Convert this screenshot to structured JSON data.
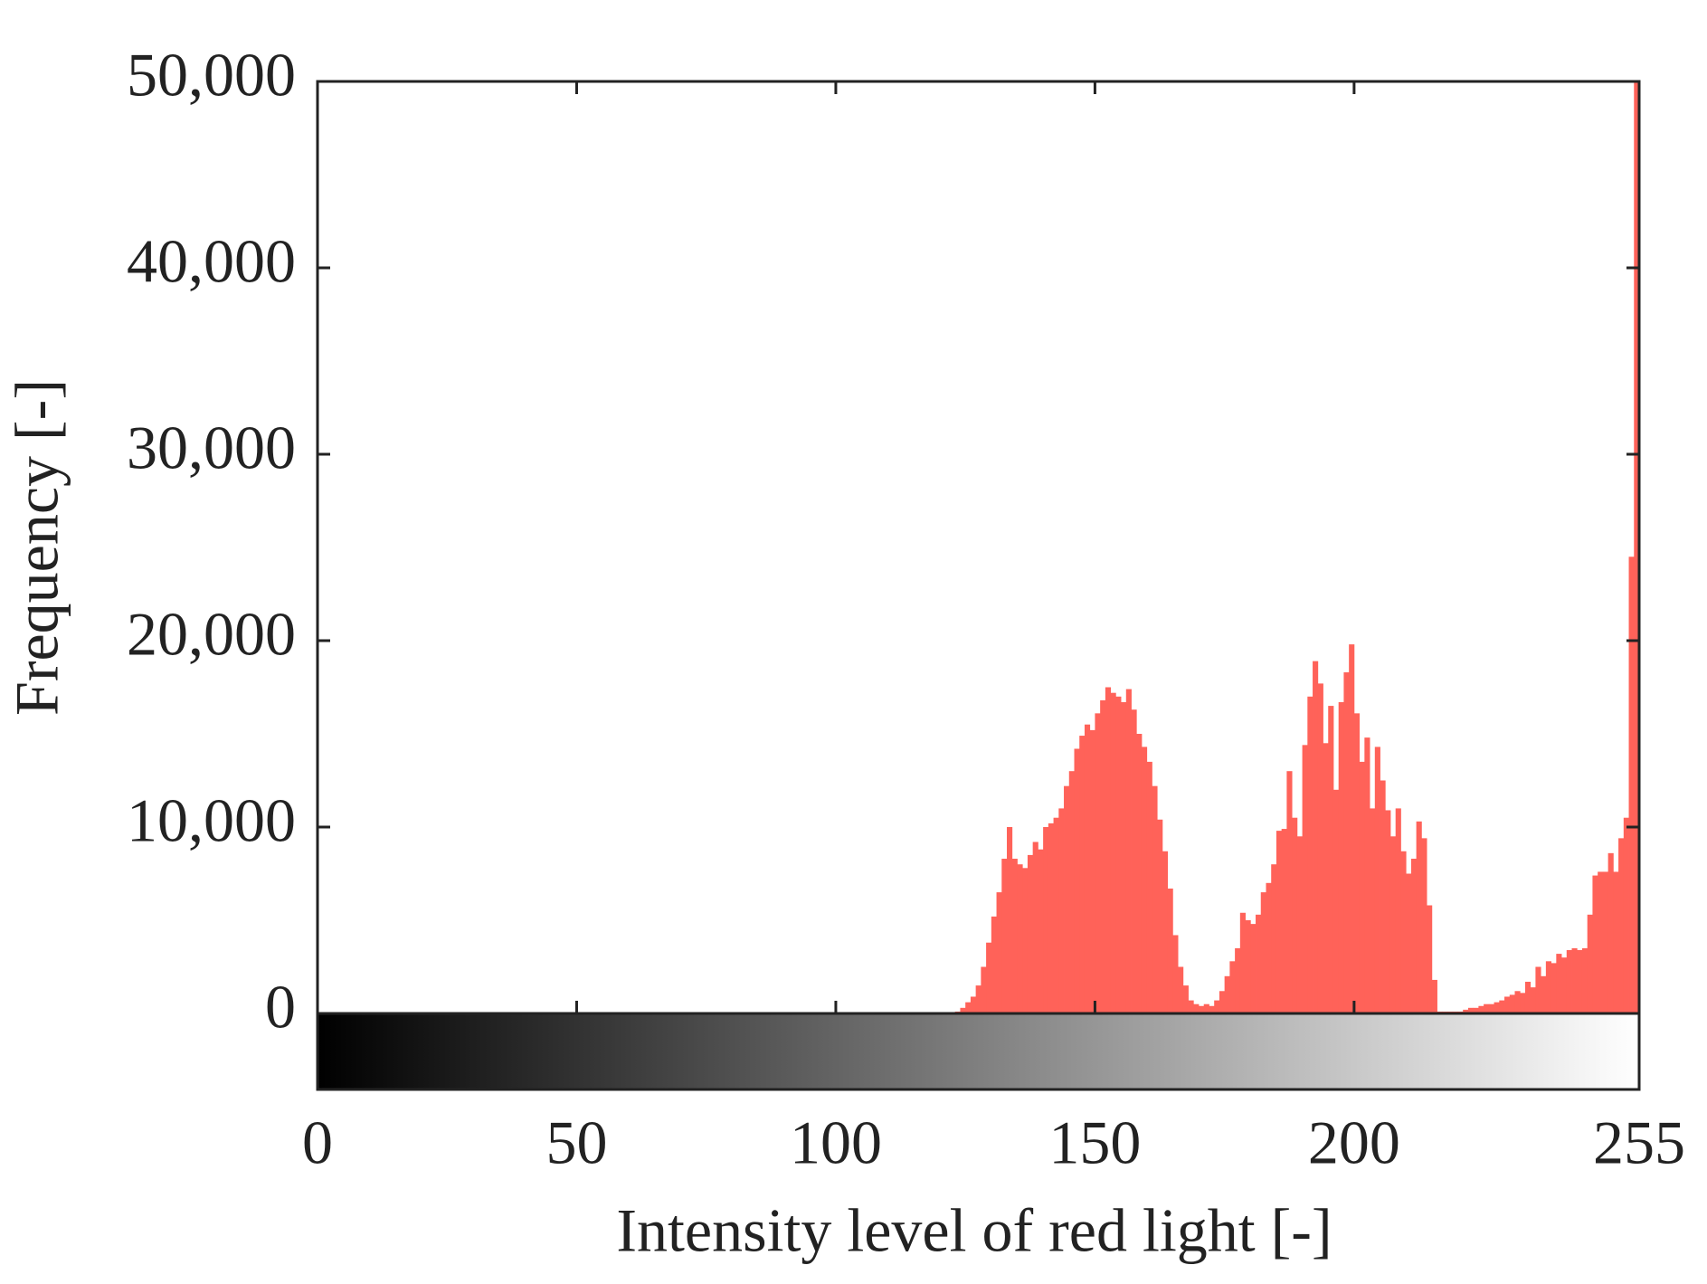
{
  "chart_data": {
    "type": "histogram",
    "xlabel": "Intensity level of red light [-]",
    "ylabel": "Frequency [-]",
    "color": "#ff6259",
    "xlim": [
      0,
      255
    ],
    "xticks": [
      0,
      50,
      100,
      150,
      200,
      255
    ],
    "ylim": [
      0,
      50000
    ],
    "yticks": [
      0,
      {
        "value": 10000,
        "label": "10,000"
      },
      {
        "value": 20000,
        "label": "20,000"
      },
      {
        "value": 30000,
        "label": "30,000"
      },
      {
        "value": 40000,
        "label": "40,000"
      },
      {
        "value": 50000,
        "label": "50,000"
      }
    ],
    "bins": [
      0,
      1,
      2,
      3,
      4,
      5,
      6,
      7,
      8,
      9,
      10,
      11,
      12,
      13,
      14,
      15,
      16,
      17,
      18,
      19,
      20,
      21,
      22,
      23,
      24,
      25,
      26,
      27,
      28,
      29,
      30,
      31,
      32,
      33,
      34,
      35,
      36,
      37,
      38,
      39,
      40,
      41,
      42,
      43,
      44,
      45,
      46,
      47,
      48,
      49,
      50,
      51,
      52,
      53,
      54,
      55,
      56,
      57,
      58,
      59,
      60,
      61,
      62,
      63,
      64,
      65,
      66,
      67,
      68,
      69,
      70,
      71,
      72,
      73,
      74,
      75,
      76,
      77,
      78,
      79,
      80,
      81,
      82,
      83,
      84,
      85,
      86,
      87,
      88,
      89,
      90,
      91,
      92,
      93,
      94,
      95,
      96,
      97,
      98,
      99,
      100,
      101,
      102,
      103,
      104,
      105,
      106,
      107,
      108,
      109,
      110,
      111,
      112,
      113,
      114,
      115,
      116,
      117,
      118,
      119,
      120,
      121,
      122,
      123,
      124,
      125,
      126,
      127,
      128,
      129,
      130,
      131,
      132,
      133,
      134,
      135,
      136,
      137,
      138,
      139,
      140,
      141,
      142,
      143,
      144,
      145,
      146,
      147,
      148,
      149,
      150,
      151,
      152,
      153,
      154,
      155,
      156,
      157,
      158,
      159,
      160,
      161,
      162,
      163,
      164,
      165,
      166,
      167,
      168,
      169,
      170,
      171,
      172,
      173,
      174,
      175,
      176,
      177,
      178,
      179,
      180,
      181,
      182,
      183,
      184,
      185,
      186,
      187,
      188,
      189,
      190,
      191,
      192,
      193,
      194,
      195,
      196,
      197,
      198,
      199,
      200,
      201,
      202,
      203,
      204,
      205,
      206,
      207,
      208,
      209,
      210,
      211,
      212,
      213,
      214,
      215,
      216,
      217,
      218,
      219,
      220,
      221,
      222,
      223,
      224,
      225,
      226,
      227,
      228,
      229,
      230,
      231,
      232,
      233,
      234,
      235,
      236,
      237,
      238,
      239,
      240,
      241,
      242,
      243,
      244,
      245,
      246,
      247,
      248,
      249,
      250,
      251,
      252,
      253,
      254,
      255
    ],
    "counts": [
      0,
      0,
      0,
      0,
      0,
      0,
      0,
      0,
      0,
      0,
      0,
      0,
      0,
      0,
      0,
      0,
      0,
      0,
      0,
      0,
      0,
      0,
      0,
      0,
      0,
      0,
      0,
      0,
      0,
      0,
      0,
      0,
      0,
      0,
      0,
      0,
      0,
      0,
      0,
      0,
      0,
      0,
      0,
      0,
      0,
      0,
      0,
      0,
      0,
      0,
      0,
      0,
      0,
      0,
      0,
      0,
      0,
      0,
      0,
      0,
      0,
      0,
      0,
      0,
      0,
      0,
      0,
      0,
      0,
      0,
      0,
      0,
      0,
      0,
      0,
      0,
      0,
      0,
      0,
      0,
      0,
      0,
      0,
      0,
      0,
      0,
      0,
      0,
      0,
      0,
      0,
      0,
      0,
      0,
      0,
      0,
      0,
      0,
      0,
      0,
      0,
      0,
      0,
      0,
      0,
      0,
      0,
      0,
      0,
      0,
      0,
      0,
      0,
      0,
      0,
      0,
      0,
      0,
      0,
      0,
      0,
      0,
      0,
      100,
      300,
      600,
      900,
      1500,
      2500,
      3800,
      5200,
      6500,
      8300,
      10000,
      8300,
      8000,
      7800,
      8500,
      9200,
      8800,
      10000,
      10200,
      10500,
      11000,
      12200,
      13000,
      14200,
      14900,
      15500,
      15200,
      16100,
      16800,
      17500,
      17200,
      17000,
      16700,
      17400,
      16300,
      15000,
      14300,
      13500,
      12200,
      10400,
      8700,
      6700,
      4200,
      2500,
      1500,
      700,
      500,
      400,
      500,
      400,
      700,
      1200,
      2000,
      2800,
      3500,
      5400,
      5000,
      4800,
      5300,
      6500,
      7000,
      8000,
      9800,
      9900,
      13000,
      10500,
      9500,
      14400,
      17000,
      18900,
      17700,
      14500,
      16500,
      12000,
      16700,
      18300,
      19800,
      16100,
      13500,
      14800,
      11000,
      14300,
      12500,
      10900,
      9500,
      11000,
      8700,
      7500,
      8300,
      10300,
      9400,
      5800,
      1800,
      100,
      100,
      100,
      100,
      100,
      200,
      300,
      300,
      400,
      500,
      500,
      600,
      700,
      900,
      1000,
      1200,
      1100,
      1700,
      1400,
      2500,
      2000,
      2800,
      2700,
      3200,
      3000,
      3400,
      3500,
      3400,
      3500,
      5300,
      7400,
      7600,
      7600,
      8600,
      7600,
      9400,
      10500,
      24500,
      50000
    ]
  }
}
